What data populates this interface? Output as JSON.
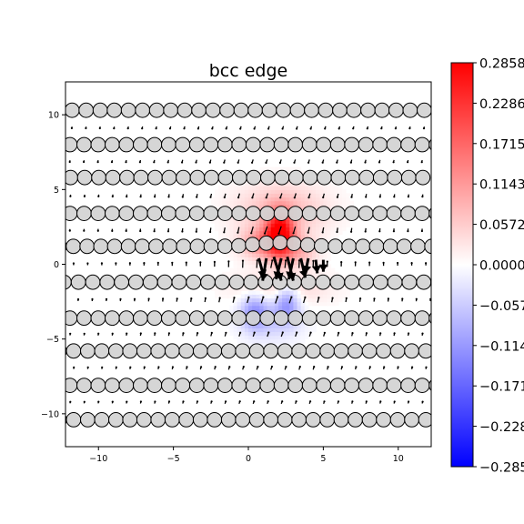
{
  "chart_data": {
    "type": "heatmap",
    "title": "bcc edge",
    "xlabel": "",
    "ylabel": "",
    "xlim": [
      -12.2,
      12.2
    ],
    "ylim": [
      -12.2,
      12.2
    ],
    "xticks": [
      -10,
      -5,
      0,
      5,
      10
    ],
    "yticks": [
      -10,
      -5,
      0,
      5,
      10
    ],
    "grid": false,
    "colormap": "bwr",
    "colorbar": {
      "min": -0.2858,
      "max": 0.2858,
      "ticks": [
        0.2858,
        0.2286,
        0.1715,
        0.1143,
        0.0572,
        0.0,
        -0.0572,
        -0.1143,
        -0.1715,
        -0.2286,
        -0.2858
      ],
      "tick_labels": [
        "0.2858",
        "0.2286",
        "0.1715",
        "0.1143",
        "0.0572",
        "0.0000",
        "−0.0572",
        "−0.1143",
        "−0.1715",
        "−0.2286",
        "−0.2858"
      ]
    },
    "field_peaks": [
      {
        "x": 2.1,
        "y": 2.0,
        "value": 0.2858,
        "sx": 0.9,
        "sy": 1.5
      },
      {
        "x": 0.9,
        "y": 1.4,
        "value": 0.12,
        "sx": 1.4,
        "sy": 1.0
      },
      {
        "x": 3.4,
        "y": 0.9,
        "value": 0.08,
        "sx": 1.2,
        "sy": 1.0
      },
      {
        "x": 2.2,
        "y": 3.6,
        "value": 0.08,
        "sx": 3.0,
        "sy": 1.8
      },
      {
        "x": 0.4,
        "y": -3.1,
        "value": -0.1,
        "sx": 0.9,
        "sy": 1.2
      },
      {
        "x": 2.6,
        "y": -2.5,
        "value": -0.11,
        "sx": 0.8,
        "sy": 1.2
      },
      {
        "x": 1.6,
        "y": -3.6,
        "value": -0.06,
        "sx": 2.0,
        "sy": 1.4
      },
      {
        "x": 2.2,
        "y": -1.6,
        "value": 0.05,
        "sx": 3.2,
        "sy": 1.2
      }
    ],
    "atom_rows": [
      {
        "y": 10.3,
        "x_start": -12.7,
        "spacing": 0.94,
        "count": 27
      },
      {
        "y": 8.0,
        "x_start": -11.9,
        "spacing": 0.94,
        "count": 27
      },
      {
        "y": 5.8,
        "x_start": -12.8,
        "spacing": 0.94,
        "count": 27
      },
      {
        "y": 3.4,
        "x_start": -11.9,
        "spacing": 0.94,
        "count": 27
      },
      {
        "y": 1.2,
        "x_start": -12.6,
        "spacing": 0.92,
        "count": 28
      },
      {
        "y": -1.2,
        "x_start": -12.3,
        "spacing": 0.96,
        "count": 27
      },
      {
        "y": -3.6,
        "x_start": -11.9,
        "spacing": 0.94,
        "count": 27
      },
      {
        "y": -5.8,
        "x_start": -12.6,
        "spacing": 0.94,
        "count": 27
      },
      {
        "y": -8.1,
        "x_start": -11.9,
        "spacing": 0.94,
        "count": 27
      },
      {
        "y": -10.4,
        "x_start": -12.6,
        "spacing": 0.94,
        "count": 27
      }
    ],
    "core_arrows": [
      {
        "x": 0.7,
        "y": 0.4,
        "dx": 0.35,
        "dy": -1.3
      },
      {
        "x": 1.2,
        "y": 0.4,
        "dx": -0.25,
        "dy": -1.5
      },
      {
        "x": 1.7,
        "y": 0.5,
        "dx": 0.5,
        "dy": -1.6
      },
      {
        "x": 2.2,
        "y": 0.4,
        "dx": -0.35,
        "dy": -1.4
      },
      {
        "x": 2.6,
        "y": 0.5,
        "dx": 0.4,
        "dy": -1.6
      },
      {
        "x": 3.0,
        "y": 0.4,
        "dx": -0.3,
        "dy": -1.4
      },
      {
        "x": 3.5,
        "y": 0.4,
        "dx": 0.3,
        "dy": -1.3
      },
      {
        "x": 4.0,
        "y": 0.4,
        "dx": -0.2,
        "dy": -1.0
      },
      {
        "x": 4.5,
        "y": 0.3,
        "dx": 0.1,
        "dy": -0.9
      },
      {
        "x": 5.0,
        "y": 0.3,
        "dx": 0.0,
        "dy": -0.8
      }
    ]
  }
}
